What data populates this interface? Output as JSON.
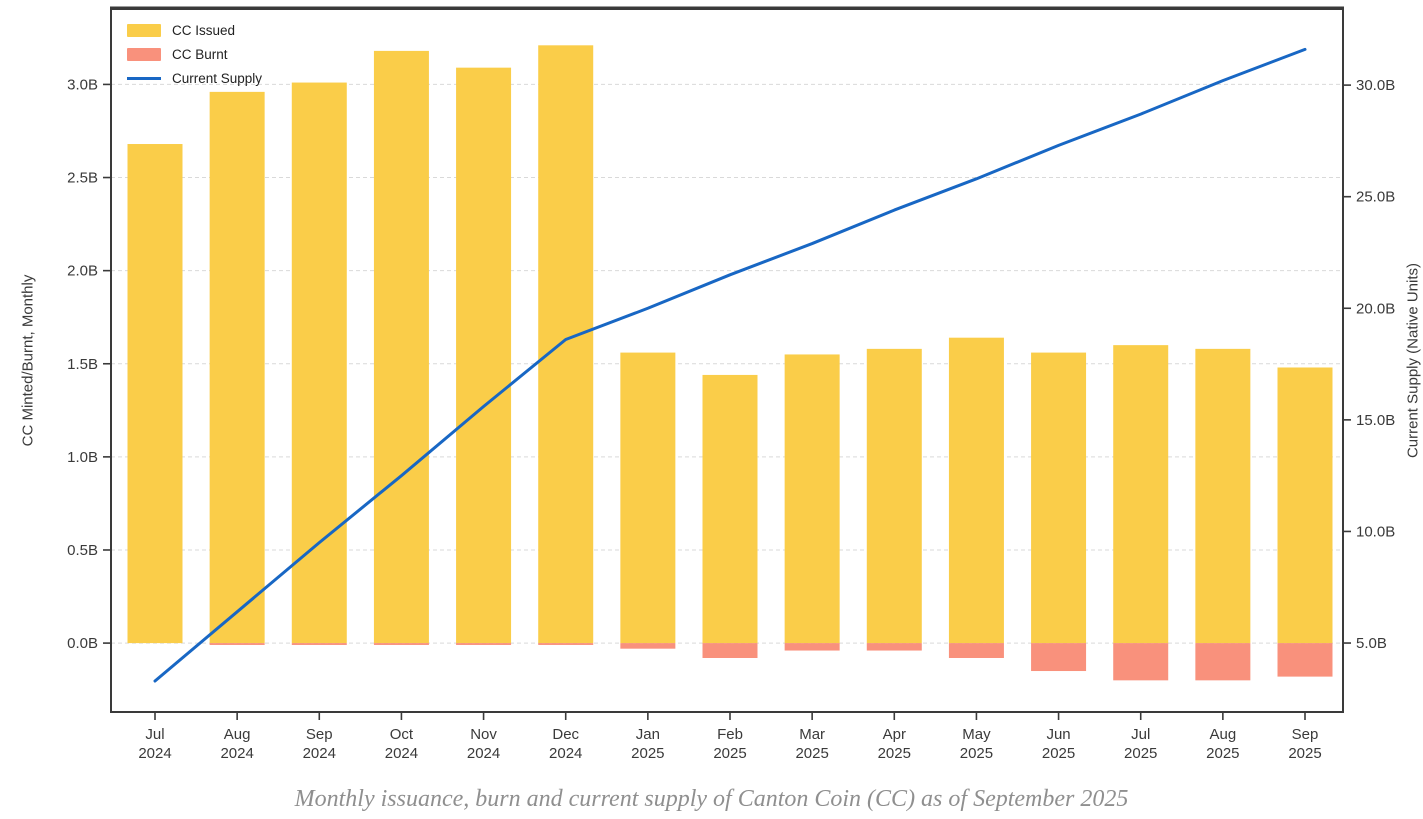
{
  "caption": {
    "text": "Monthly issuance, burn and current supply of Canton Coin (CC) as of September 2025"
  },
  "chart_data": {
    "type": "bar",
    "subtype": "dual-axis bar + line combo",
    "categories": [
      [
        "Jul",
        "2024"
      ],
      [
        "Aug",
        "2024"
      ],
      [
        "Sep",
        "2024"
      ],
      [
        "Oct",
        "2024"
      ],
      [
        "Nov",
        "2024"
      ],
      [
        "Dec",
        "2024"
      ],
      [
        "Jan",
        "2025"
      ],
      [
        "Feb",
        "2025"
      ],
      [
        "Mar",
        "2025"
      ],
      [
        "Apr",
        "2025"
      ],
      [
        "May",
        "2025"
      ],
      [
        "Jun",
        "2025"
      ],
      [
        "Jul",
        "2025"
      ],
      [
        "Aug",
        "2025"
      ],
      [
        "Sep",
        "2025"
      ]
    ],
    "series": [
      {
        "name": "CC Issued",
        "type": "bar",
        "axis": "left",
        "color": "#FACD49",
        "values": [
          2.68,
          2.96,
          3.01,
          3.18,
          3.09,
          3.21,
          1.56,
          1.44,
          1.55,
          1.58,
          1.64,
          1.56,
          1.6,
          1.58,
          1.48
        ]
      },
      {
        "name": "CC Burnt",
        "type": "bar",
        "axis": "left",
        "color": "#F9917C",
        "values": [
          0.0,
          -0.01,
          -0.01,
          -0.01,
          -0.01,
          -0.01,
          -0.03,
          -0.08,
          -0.04,
          -0.04,
          -0.08,
          -0.15,
          -0.2,
          -0.2,
          -0.18
        ]
      },
      {
        "name": "Current Supply",
        "type": "line",
        "axis": "right",
        "color": "#1867C4",
        "values": [
          3.3,
          6.4,
          9.5,
          12.5,
          15.6,
          18.6,
          20.0,
          21.5,
          22.9,
          24.4,
          25.8,
          27.3,
          28.7,
          30.2,
          31.6
        ]
      }
    ],
    "left_axis": {
      "label": "CC Minted/Burnt, Monthly",
      "ticks": [
        0,
        0.5,
        1.0,
        1.5,
        2.0,
        2.5,
        3.0
      ],
      "tick_labels": [
        "0.0B",
        "0.5B",
        "1.0B",
        "1.5B",
        "2.0B",
        "2.5B",
        "3.0B"
      ],
      "ylim": [
        -0.37,
        3.405
      ]
    },
    "right_axis": {
      "label": "Current Supply (Native Units)",
      "ticks": [
        5,
        10,
        15,
        20,
        25,
        30
      ],
      "tick_labels": [
        "5.0B",
        "10.0B",
        "15.0B",
        "20.0B",
        "25.0B",
        "30.0B"
      ],
      "ylim": [
        1.91,
        33.41
      ]
    },
    "grid": "horizontal-dashed",
    "legend_position": "top-left"
  }
}
